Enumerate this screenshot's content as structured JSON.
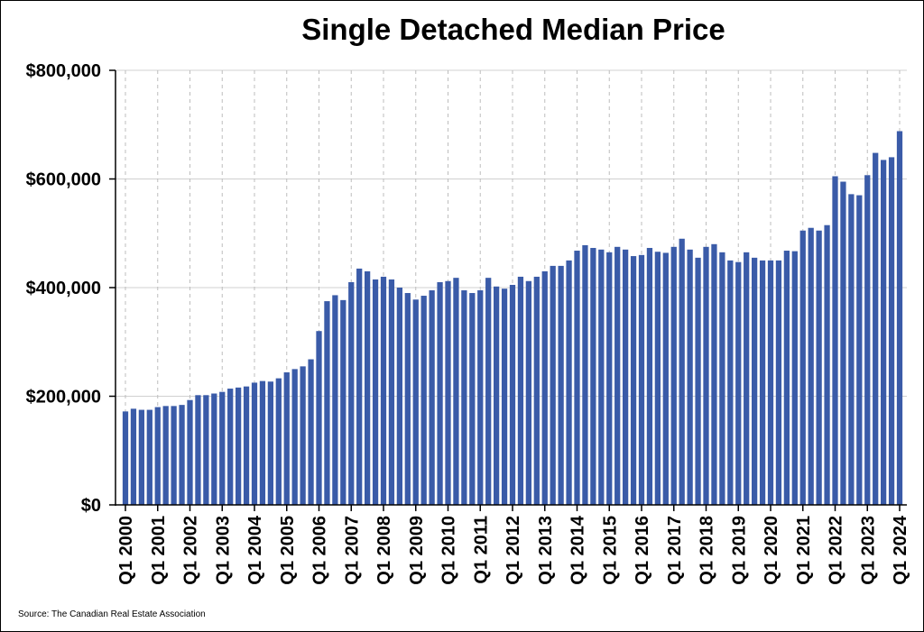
{
  "chart_data": {
    "type": "bar",
    "title": "Single Detached Median Price",
    "xlabel": "",
    "ylabel": "",
    "ylim": [
      0,
      800000
    ],
    "grid": true,
    "bar_color": "#3a5ba8",
    "source": "Source: The Canadian Real Estate Association",
    "y_ticks": [
      "$0",
      "$200,000",
      "$400,000",
      "$600,000",
      "$800,000"
    ],
    "y_tick_values": [
      0,
      200000,
      400000,
      600000,
      800000
    ],
    "x_tick_labels": [
      "Q1 2000",
      "Q1 2001",
      "Q1 2002",
      "Q1 2003",
      "Q1 2004",
      "Q1 2005",
      "Q1 2006",
      "Q1 2007",
      "Q1 2008",
      "Q1 2009",
      "Q1 2010",
      "Q1 2011",
      "Q1 2012",
      "Q1 2013",
      "Q1 2014",
      "Q1 2015",
      "Q1 2016",
      "Q1 2017",
      "Q1 2018",
      "Q1 2019",
      "Q1 2020",
      "Q1 2021",
      "Q1 2022",
      "Q1 2023",
      "Q1 2024"
    ],
    "categories": [
      "Q1 2000",
      "Q2 2000",
      "Q3 2000",
      "Q4 2000",
      "Q1 2001",
      "Q2 2001",
      "Q3 2001",
      "Q4 2001",
      "Q1 2002",
      "Q2 2002",
      "Q3 2002",
      "Q4 2002",
      "Q1 2003",
      "Q2 2003",
      "Q3 2003",
      "Q4 2003",
      "Q1 2004",
      "Q2 2004",
      "Q3 2004",
      "Q4 2004",
      "Q1 2005",
      "Q2 2005",
      "Q3 2005",
      "Q4 2005",
      "Q1 2006",
      "Q2 2006",
      "Q3 2006",
      "Q4 2006",
      "Q1 2007",
      "Q2 2007",
      "Q3 2007",
      "Q4 2007",
      "Q1 2008",
      "Q2 2008",
      "Q3 2008",
      "Q4 2008",
      "Q1 2009",
      "Q2 2009",
      "Q3 2009",
      "Q4 2009",
      "Q1 2010",
      "Q2 2010",
      "Q3 2010",
      "Q4 2010",
      "Q1 2011",
      "Q2 2011",
      "Q3 2011",
      "Q4 2011",
      "Q1 2012",
      "Q2 2012",
      "Q3 2012",
      "Q4 2012",
      "Q1 2013",
      "Q2 2013",
      "Q3 2013",
      "Q4 2013",
      "Q1 2014",
      "Q2 2014",
      "Q3 2014",
      "Q4 2014",
      "Q1 2015",
      "Q2 2015",
      "Q3 2015",
      "Q4 2015",
      "Q1 2016",
      "Q2 2016",
      "Q3 2016",
      "Q4 2016",
      "Q1 2017",
      "Q2 2017",
      "Q3 2017",
      "Q4 2017",
      "Q1 2018",
      "Q2 2018",
      "Q3 2018",
      "Q4 2018",
      "Q1 2019",
      "Q2 2019",
      "Q3 2019",
      "Q4 2019",
      "Q1 2020",
      "Q2 2020",
      "Q3 2020",
      "Q4 2020",
      "Q1 2021",
      "Q2 2021",
      "Q3 2021",
      "Q4 2021",
      "Q1 2022",
      "Q2 2022",
      "Q3 2022",
      "Q4 2022",
      "Q1 2023",
      "Q2 2023",
      "Q3 2023",
      "Q4 2023",
      "Q1 2024"
    ],
    "values": [
      172000,
      177000,
      175000,
      175000,
      180000,
      182000,
      182000,
      184000,
      193000,
      202000,
      202000,
      205000,
      208000,
      214000,
      216000,
      218000,
      225000,
      228000,
      227000,
      233000,
      244000,
      250000,
      255000,
      268000,
      320000,
      375000,
      386000,
      377000,
      410000,
      435000,
      430000,
      415000,
      420000,
      415000,
      400000,
      390000,
      378000,
      385000,
      395000,
      410000,
      412000,
      418000,
      395000,
      390000,
      395000,
      418000,
      402000,
      398000,
      405000,
      420000,
      412000,
      420000,
      430000,
      440000,
      440000,
      450000,
      468000,
      478000,
      473000,
      470000,
      465000,
      475000,
      470000,
      458000,
      460000,
      473000,
      466000,
      464000,
      475000,
      490000,
      470000,
      455000,
      475000,
      480000,
      465000,
      450000,
      447000,
      465000,
      455000,
      450000,
      450000,
      450000,
      468000,
      467000,
      505000,
      510000,
      505000,
      515000,
      605000,
      595000,
      572000,
      570000,
      607000,
      648000,
      635000,
      640000,
      688000
    ]
  }
}
